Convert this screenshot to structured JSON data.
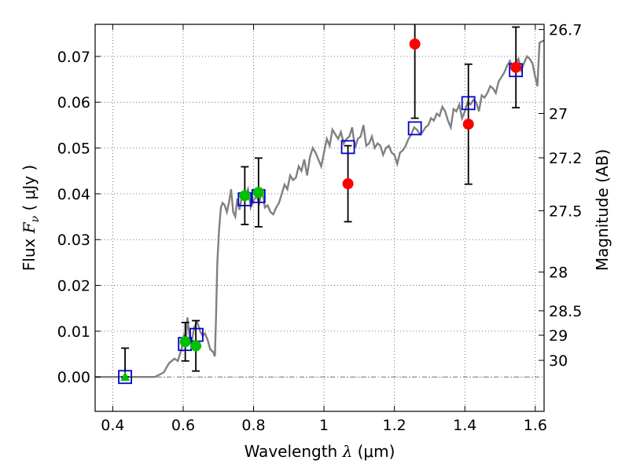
{
  "chart_data": {
    "type": "scatter",
    "xlabel": {
      "prefix": "Wavelength  ",
      "symbol": "λ",
      "unit": " (μm)"
    },
    "ylabel": {
      "prefix": "Flux  ",
      "symbol": "F",
      "subscript": "ν",
      "unit": "  ( μJy )"
    },
    "y2label": "Magnitude (AB)",
    "xlim": [
      0.35,
      1.625
    ],
    "ylim": [
      -0.0075,
      0.077
    ],
    "grid": true,
    "x_ticks": [
      0.4,
      0.6,
      0.8,
      1.0,
      1.2,
      1.4,
      1.6
    ],
    "x_tick_labels": [
      "0.4",
      "0.6",
      "0.8",
      "1",
      "1.2",
      "1.4",
      "1.6"
    ],
    "y_ticks": [
      0.0,
      0.01,
      0.02,
      0.03,
      0.04,
      0.05,
      0.06,
      0.07
    ],
    "y_tick_labels": [
      "0.00",
      "0.01",
      "0.02",
      "0.03",
      "0.04",
      "0.05",
      "0.06",
      "0.07"
    ],
    "magnitude_ticks": [
      {
        "label": "26.7",
        "mag": 26.7
      },
      {
        "label": "27",
        "mag": 27.0
      },
      {
        "label": "27.2",
        "mag": 27.2
      },
      {
        "label": "27.5",
        "mag": 27.5
      },
      {
        "label": "28",
        "mag": 28.0
      },
      {
        "label": "28.5",
        "mag": 28.5
      },
      {
        "label": "29",
        "mag": 29.0
      },
      {
        "label": "30",
        "mag": 30.0
      }
    ],
    "zero_line": 0.0,
    "colors": {
      "model": "#808080",
      "green": "#00c000",
      "red": "#ff0000",
      "model_points": "#0000cc",
      "errorbar": "#000000",
      "zero_line": "#707070"
    },
    "model_spectrum": [
      [
        0.35,
        0.0
      ],
      [
        0.52,
        0.0
      ],
      [
        0.545,
        0.001
      ],
      [
        0.56,
        0.003
      ],
      [
        0.575,
        0.004
      ],
      [
        0.585,
        0.0035
      ],
      [
        0.595,
        0.006
      ],
      [
        0.602,
        0.009
      ],
      [
        0.608,
        0.008
      ],
      [
        0.612,
        0.013
      ],
      [
        0.618,
        0.009
      ],
      [
        0.625,
        0.008
      ],
      [
        0.632,
        0.011
      ],
      [
        0.64,
        0.012
      ],
      [
        0.648,
        0.01
      ],
      [
        0.655,
        0.009
      ],
      [
        0.662,
        0.0095
      ],
      [
        0.67,
        0.008
      ],
      [
        0.677,
        0.006
      ],
      [
        0.685,
        0.0055
      ],
      [
        0.69,
        0.0045
      ],
      [
        0.693,
        0.012
      ],
      [
        0.697,
        0.025
      ],
      [
        0.702,
        0.032
      ],
      [
        0.707,
        0.037
      ],
      [
        0.712,
        0.038
      ],
      [
        0.718,
        0.0375
      ],
      [
        0.724,
        0.036
      ],
      [
        0.73,
        0.038
      ],
      [
        0.736,
        0.041
      ],
      [
        0.742,
        0.036
      ],
      [
        0.748,
        0.035
      ],
      [
        0.754,
        0.039
      ],
      [
        0.76,
        0.0365
      ],
      [
        0.768,
        0.04
      ],
      [
        0.776,
        0.0395
      ],
      [
        0.784,
        0.041
      ],
      [
        0.792,
        0.037
      ],
      [
        0.8,
        0.0385
      ],
      [
        0.808,
        0.0395
      ],
      [
        0.816,
        0.038
      ],
      [
        0.824,
        0.041
      ],
      [
        0.832,
        0.037
      ],
      [
        0.84,
        0.0375
      ],
      [
        0.848,
        0.036
      ],
      [
        0.856,
        0.0355
      ],
      [
        0.864,
        0.037
      ],
      [
        0.872,
        0.038
      ],
      [
        0.88,
        0.04
      ],
      [
        0.888,
        0.042
      ],
      [
        0.896,
        0.041
      ],
      [
        0.904,
        0.044
      ],
      [
        0.912,
        0.043
      ],
      [
        0.92,
        0.0435
      ],
      [
        0.928,
        0.046
      ],
      [
        0.936,
        0.045
      ],
      [
        0.944,
        0.0475
      ],
      [
        0.952,
        0.044
      ],
      [
        0.96,
        0.048
      ],
      [
        0.968,
        0.05
      ],
      [
        0.976,
        0.049
      ],
      [
        0.984,
        0.0475
      ],
      [
        0.992,
        0.046
      ],
      [
        1.0,
        0.049
      ],
      [
        1.008,
        0.052
      ],
      [
        1.016,
        0.0505
      ],
      [
        1.024,
        0.054
      ],
      [
        1.032,
        0.053
      ],
      [
        1.04,
        0.052
      ],
      [
        1.048,
        0.0535
      ],
      [
        1.056,
        0.051
      ],
      [
        1.064,
        0.052
      ],
      [
        1.072,
        0.0525
      ],
      [
        1.08,
        0.0545
      ],
      [
        1.088,
        0.05
      ],
      [
        1.096,
        0.052
      ],
      [
        1.104,
        0.0525
      ],
      [
        1.112,
        0.055
      ],
      [
        1.12,
        0.0505
      ],
      [
        1.128,
        0.051
      ],
      [
        1.136,
        0.0525
      ],
      [
        1.144,
        0.05
      ],
      [
        1.152,
        0.051
      ],
      [
        1.16,
        0.0505
      ],
      [
        1.168,
        0.0485
      ],
      [
        1.176,
        0.05
      ],
      [
        1.184,
        0.0505
      ],
      [
        1.192,
        0.049
      ],
      [
        1.2,
        0.0485
      ],
      [
        1.208,
        0.0465
      ],
      [
        1.216,
        0.049
      ],
      [
        1.224,
        0.0495
      ],
      [
        1.232,
        0.0505
      ],
      [
        1.24,
        0.052
      ],
      [
        1.248,
        0.053
      ],
      [
        1.256,
        0.0545
      ],
      [
        1.264,
        0.054
      ],
      [
        1.272,
        0.053
      ],
      [
        1.28,
        0.0535
      ],
      [
        1.288,
        0.0545
      ],
      [
        1.296,
        0.055
      ],
      [
        1.304,
        0.0565
      ],
      [
        1.312,
        0.056
      ],
      [
        1.32,
        0.0575
      ],
      [
        1.328,
        0.057
      ],
      [
        1.336,
        0.059
      ],
      [
        1.344,
        0.058
      ],
      [
        1.352,
        0.056
      ],
      [
        1.36,
        0.0545
      ],
      [
        1.368,
        0.0585
      ],
      [
        1.376,
        0.058
      ],
      [
        1.384,
        0.0595
      ],
      [
        1.392,
        0.0565
      ],
      [
        1.4,
        0.058
      ],
      [
        1.408,
        0.06
      ],
      [
        1.416,
        0.0595
      ],
      [
        1.424,
        0.0605
      ],
      [
        1.432,
        0.06
      ],
      [
        1.44,
        0.058
      ],
      [
        1.448,
        0.0615
      ],
      [
        1.456,
        0.061
      ],
      [
        1.464,
        0.062
      ],
      [
        1.472,
        0.0635
      ],
      [
        1.48,
        0.063
      ],
      [
        1.488,
        0.062
      ],
      [
        1.496,
        0.0645
      ],
      [
        1.504,
        0.0655
      ],
      [
        1.512,
        0.0665
      ],
      [
        1.52,
        0.068
      ],
      [
        1.528,
        0.069
      ],
      [
        1.536,
        0.0675
      ],
      [
        1.544,
        0.0685
      ],
      [
        1.552,
        0.0695
      ],
      [
        1.56,
        0.067
      ],
      [
        1.568,
        0.0685
      ],
      [
        1.576,
        0.07
      ],
      [
        1.584,
        0.0695
      ],
      [
        1.592,
        0.0685
      ],
      [
        1.6,
        0.0655
      ],
      [
        1.606,
        0.0635
      ],
      [
        1.612,
        0.073
      ],
      [
        1.625,
        0.0735
      ]
    ],
    "model_points": [
      {
        "x": 0.435,
        "y": 0.0
      },
      {
        "x": 0.605,
        "y": 0.0072
      },
      {
        "x": 0.638,
        "y": 0.0092
      },
      {
        "x": 0.775,
        "y": 0.0388
      },
      {
        "x": 0.814,
        "y": 0.0395
      },
      {
        "x": 1.068,
        "y": 0.0502
      },
      {
        "x": 1.258,
        "y": 0.0543
      },
      {
        "x": 1.41,
        "y": 0.0598
      },
      {
        "x": 1.545,
        "y": 0.067
      }
    ],
    "green_points": [
      {
        "x": 0.606,
        "y": 0.0077,
        "err": 0.0042
      },
      {
        "x": 0.636,
        "y": 0.0068,
        "err": 0.0055
      },
      {
        "x": 0.775,
        "y": 0.0396,
        "err": 0.0063
      },
      {
        "x": 0.814,
        "y": 0.0403,
        "err": 0.0075
      }
    ],
    "green_upper_limit": {
      "x": 0.435,
      "y": 0.0,
      "err_up": 0.0063
    },
    "red_points": [
      {
        "x": 1.068,
        "y": 0.0422,
        "err": 0.0083
      },
      {
        "x": 1.258,
        "y": 0.0727,
        "err": 0.0162
      },
      {
        "x": 1.41,
        "y": 0.0552,
        "err": 0.0131
      },
      {
        "x": 1.545,
        "y": 0.0676,
        "err": 0.0088
      }
    ]
  }
}
